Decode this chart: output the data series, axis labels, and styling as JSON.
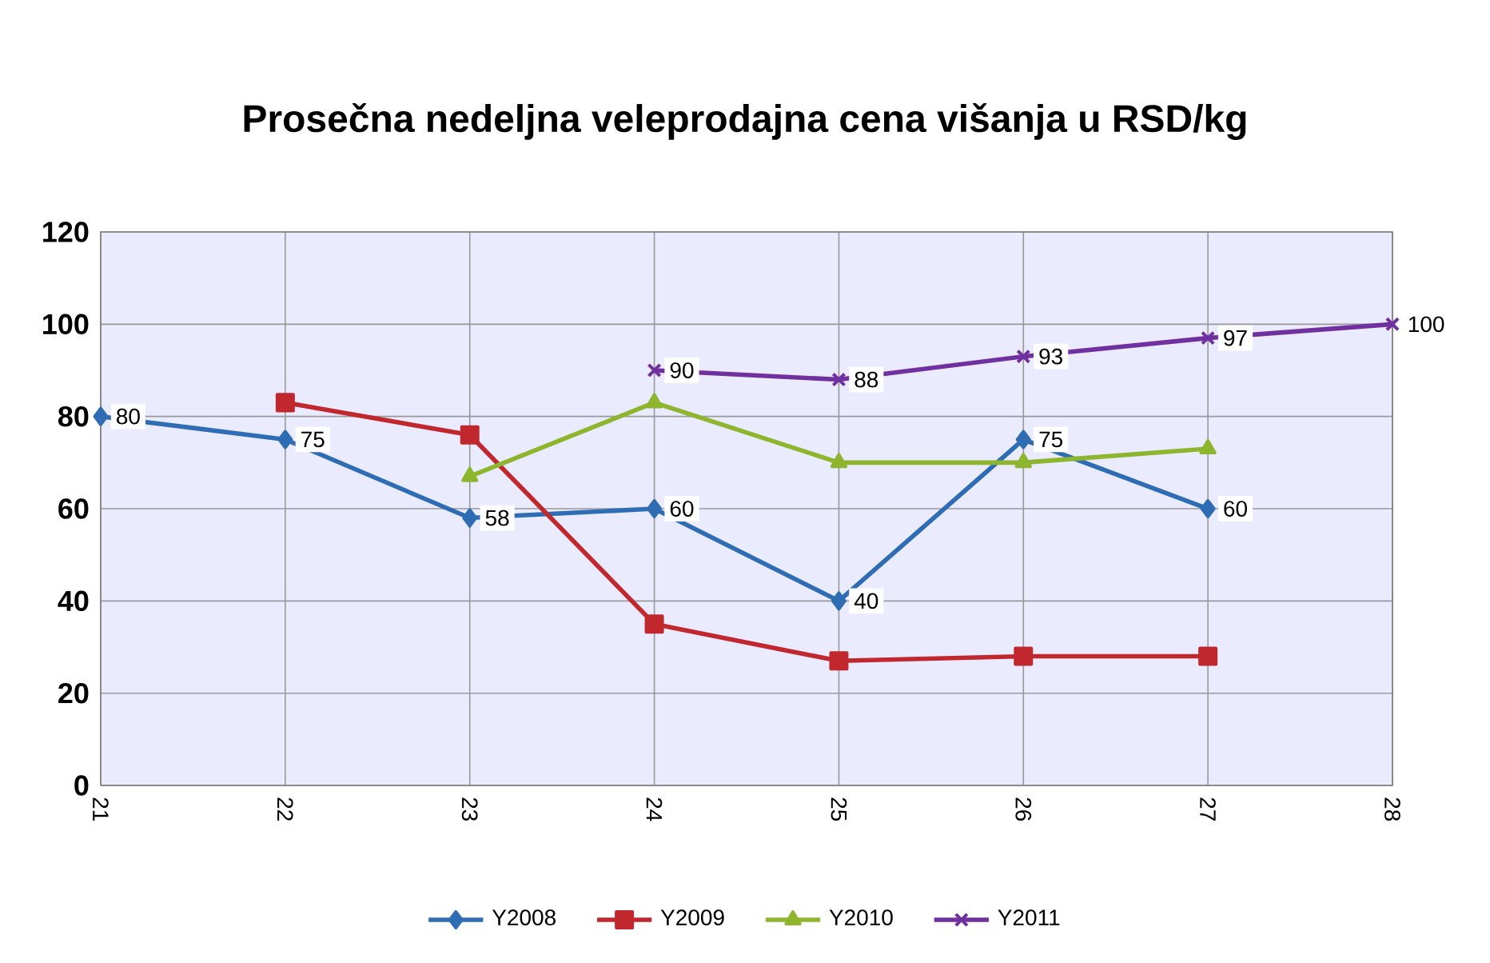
{
  "chart_data": {
    "type": "line",
    "title": "Prosečna nedeljna veleprodajna cena višanja u RSD/kg",
    "xlim": [
      21,
      28
    ],
    "xticks": [
      21,
      22,
      23,
      24,
      25,
      26,
      27,
      28
    ],
    "ylim": [
      0,
      120
    ],
    "yticks": [
      0,
      20,
      40,
      60,
      80,
      100,
      120
    ],
    "grid": true,
    "legend": "bottom",
    "series": [
      {
        "name": "Y2008",
        "color": "#2e6db4",
        "marker": "diamond",
        "x": [
          21,
          22,
          23,
          24,
          25,
          26,
          27
        ],
        "values": [
          80,
          75,
          58,
          60,
          40,
          75,
          60
        ],
        "value_labels": [
          "80",
          "75",
          "58",
          "60",
          "40",
          "75",
          "60"
        ]
      },
      {
        "name": "Y2009",
        "color": "#c0282d",
        "marker": "square",
        "x": [
          22,
          23,
          24,
          25,
          26,
          27
        ],
        "values": [
          83,
          76,
          35,
          27,
          28,
          28
        ]
      },
      {
        "name": "Y2010",
        "color": "#8db52e",
        "marker": "triangle",
        "x": [
          23,
          24,
          25,
          26,
          27
        ],
        "values": [
          67,
          83,
          70,
          70,
          73
        ]
      },
      {
        "name": "Y2011",
        "color": "#7030a0",
        "marker": "cross",
        "x": [
          24,
          25,
          26,
          27,
          28
        ],
        "values": [
          90,
          88,
          93,
          97,
          100
        ],
        "value_labels": [
          "90",
          "88",
          "93",
          "97",
          "100"
        ]
      }
    ]
  }
}
